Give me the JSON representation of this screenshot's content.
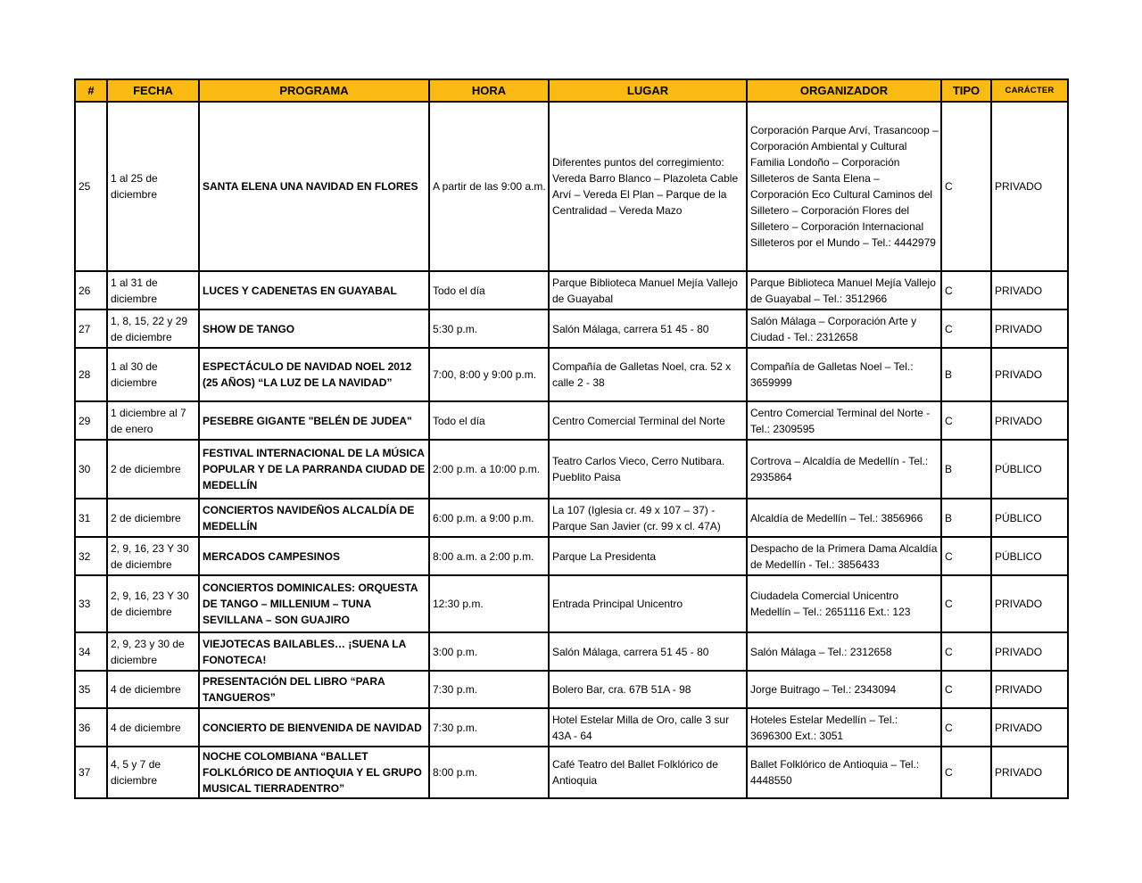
{
  "colors": {
    "header_bg": "#FBBA12",
    "border": "#000000",
    "page_bg": "#FFFFFF"
  },
  "table": {
    "columns": [
      "#",
      "FECHA",
      "PROGRAMA",
      "HORA",
      "LUGAR",
      "ORGANIZADOR",
      "TIPO",
      "CARÁCTER"
    ],
    "rows": [
      {
        "num": "25",
        "fecha": "1 al 25 de diciembre",
        "programa": "SANTA ELENA UNA NAVIDAD EN FLORES",
        "hora": "A partir de las 9:00 a.m.",
        "lugar": "Diferentes puntos del corregimiento: Vereda Barro Blanco – Plazoleta Cable Arví – Vereda El Plan – Parque de la Centralidad – Vereda Mazo",
        "organizador": "Corporación Parque Arví, Trasancoop – Corporación Ambiental y Cultural Familia Londoño – Corporación Silleteros de Santa Elena – Corporación Eco Cultural Caminos del Silletero – Corporación Flores del Silletero – Corporación Internacional Silleteros por el Mundo – Tel.: 4442979",
        "tipo": "C",
        "caracter": "PRIVADO"
      },
      {
        "num": "26",
        "fecha": "1 al 31 de diciembre",
        "programa": "LUCES Y CADENETAS EN GUAYABAL",
        "hora": "Todo el día",
        "lugar": "Parque Biblioteca Manuel Mejía Vallejo de Guayabal",
        "organizador": "Parque Biblioteca Manuel Mejía Vallejo de Guayabal – Tel.: 3512966",
        "tipo": "C",
        "caracter": "PRIVADO"
      },
      {
        "num": "27",
        "fecha": "1, 8, 15, 22 y 29 de diciembre",
        "programa": "SHOW DE TANGO",
        "hora": "5:30 p.m.",
        "lugar": "Salón Málaga, carrera 51 45 - 80",
        "organizador": "Salón Málaga – Corporación Arte y Ciudad - Tel.: 2312658",
        "tipo": "C",
        "caracter": "PRIVADO"
      },
      {
        "num": "28",
        "fecha": "1 al 30 de diciembre",
        "programa": "ESPECTÁCULO DE NAVIDAD NOEL 2012 (25 AÑOS) “LA LUZ DE LA NAVIDAD”",
        "hora": "7:00, 8:00 y 9:00 p.m.",
        "lugar": "Compañía de Galletas Noel, cra. 52 x calle 2 - 38",
        "organizador": "Compañía de Galletas Noel – Tel.: 3659999",
        "tipo": "B",
        "caracter": "PRIVADO"
      },
      {
        "num": "29",
        "fecha": "1 diciembre al 7 de enero",
        "programa": "PESEBRE GIGANTE \"BELÉN DE JUDEA\"",
        "hora": "Todo el día",
        "lugar": "Centro Comercial Terminal del Norte",
        "organizador": "Centro Comercial Terminal del Norte - Tel.: 2309595",
        "tipo": "C",
        "caracter": "PRIVADO"
      },
      {
        "num": "30",
        "fecha": "2 de diciembre",
        "programa": "FESTIVAL INTERNACIONAL DE LA MÚSICA POPULAR Y DE LA PARRANDA CIUDAD DE MEDELLÍN",
        "hora": "2:00 p.m. a 10:00 p.m.",
        "lugar": "Teatro Carlos Vieco, Cerro Nutibara. Pueblito Paisa",
        "organizador": "Cortrova – Alcaldía de Medellín - Tel.: 2935864",
        "tipo": "B",
        "caracter": "PÚBLICO"
      },
      {
        "num": "31",
        "fecha": "2 de diciembre",
        "programa": "CONCIERTOS NAVIDEÑOS ALCALDÍA DE MEDELLÍN",
        "hora": "6:00 p.m. a 9:00 p.m.",
        "lugar": "La 107 (Iglesia cr. 49 x 107 – 37) - Parque San Javier (cr. 99 x cl. 47A)",
        "organizador": "Alcaldía de Medellín – Tel.: 3856966",
        "tipo": "B",
        "caracter": "PÚBLICO"
      },
      {
        "num": "32",
        "fecha": "2, 9, 16, 23 Y 30 de diciembre",
        "programa": "MERCADOS CAMPESINOS",
        "hora": "8:00 a.m. a 2:00 p.m.",
        "lugar": "Parque La Presidenta",
        "organizador": "Despacho de la Primera Dama Alcaldía de Medellín - Tel.: 3856433",
        "tipo": "C",
        "caracter": "PÚBLICO"
      },
      {
        "num": "33",
        "fecha": "2, 9, 16, 23 Y 30 de diciembre",
        "programa": "CONCIERTOS DOMINICALES: ORQUESTA DE TANGO – MILLENIUM – TUNA SEVILLANA – SON GUAJIRO",
        "hora": "12:30 p.m.",
        "lugar": "Entrada Principal Unicentro",
        "organizador": "Ciudadela Comercial Unicentro Medellín – Tel.: 2651116 Ext.: 123",
        "tipo": "C",
        "caracter": "PRIVADO"
      },
      {
        "num": "34",
        "fecha": "2, 9, 23 y 30 de diciembre",
        "programa": "VIEJOTECAS BAILABLES… ¡SUENA LA FONOTECA!",
        "hora": "3:00 p.m.",
        "lugar": "Salón Málaga, carrera 51 45 - 80",
        "organizador": "Salón Málaga – Tel.: 2312658",
        "tipo": "C",
        "caracter": "PRIVADO"
      },
      {
        "num": "35",
        "fecha": "4 de diciembre",
        "programa": "PRESENTACIÓN DEL LIBRO “PARA TANGUEROS”",
        "hora": "7:30 p.m.",
        "lugar": "Bolero Bar, cra. 67B  51A - 98",
        "organizador": "Jorge Buitrago – Tel.: 2343094",
        "tipo": "C",
        "caracter": "PRIVADO"
      },
      {
        "num": "36",
        "fecha": "4 de diciembre",
        "programa": "CONCIERTO DE BIENVENIDA DE NAVIDAD",
        "hora": "7:30 p.m.",
        "lugar": "Hotel Estelar Milla de Oro, calle 3 sur 43A - 64",
        "organizador": "Hoteles Estelar Medellín – Tel.: 3696300 Ext.: 3051",
        "tipo": "C",
        "caracter": "PRIVADO"
      },
      {
        "num": "37",
        "fecha": "4, 5 y 7 de diciembre",
        "programa": "NOCHE COLOMBIANA “BALLET FOLKLÓRICO DE ANTIOQUIA Y EL GRUPO MUSICAL TIERRADENTRO”",
        "hora": "8:00 p.m.",
        "lugar": "Café Teatro del Ballet Folklórico de Antioquia",
        "organizador": "Ballet Folklórico de Antioquia – Tel.: 4448550",
        "tipo": "C",
        "caracter": "PRIVADO"
      }
    ]
  }
}
